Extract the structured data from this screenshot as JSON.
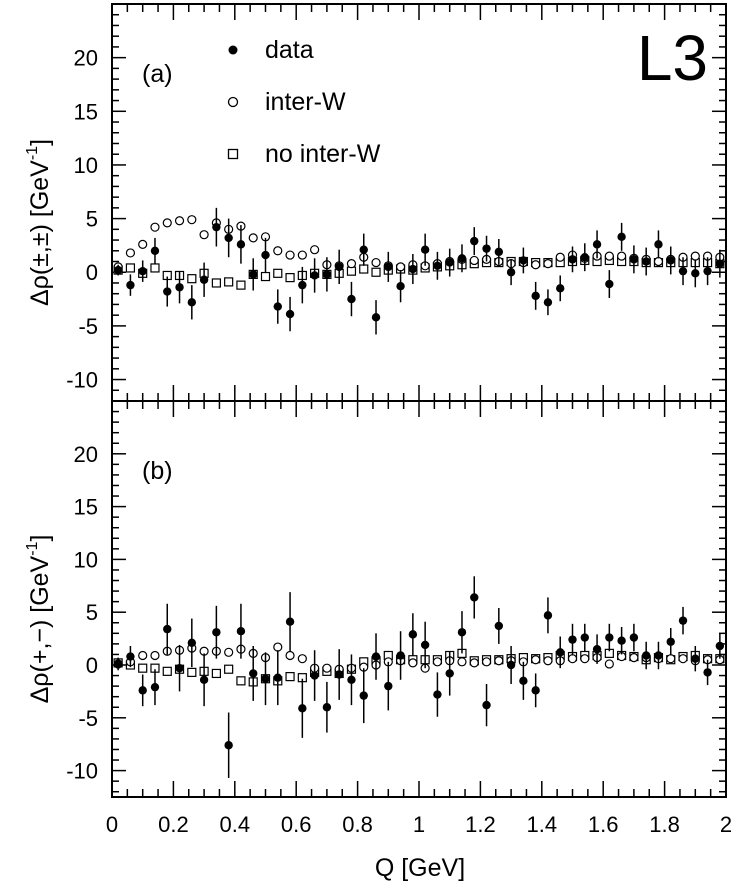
{
  "chart_data": {
    "type": "scatter",
    "logo": "L3",
    "xlabel": "Q [GeV]",
    "xlim": [
      0,
      2
    ],
    "x_ticks": [
      0,
      0.2,
      0.4,
      0.6,
      0.8,
      1,
      1.2,
      1.4,
      1.6,
      1.8,
      2
    ],
    "x_tick_labels": [
      "0",
      "0.2",
      "0.4",
      "0.6",
      "0.8",
      "1",
      "1.2",
      "1.4",
      "1.6",
      "1.8",
      "2"
    ],
    "legend": {
      "placement": "top-left",
      "entries": [
        {
          "label": "data",
          "marker": "filled-circle"
        },
        {
          "label": "inter-W",
          "marker": "open-circle"
        },
        {
          "label": "no inter-W",
          "marker": "open-square"
        }
      ]
    },
    "panels": [
      {
        "id": "a",
        "tag": "(a)",
        "ylabel": "Δρ(±,±) [GeV⁻¹]",
        "ylabel_main": "Δρ(±,±) [GeV",
        "ylabel_sup": "-1",
        "ylabel_close": "]",
        "ylim": [
          -12,
          25
        ],
        "y_ticks": [
          -10,
          -5,
          0,
          5,
          10,
          15,
          20
        ],
        "y_tick_labels": [
          "-10",
          "-5",
          "0",
          "5",
          "10",
          "15",
          "20"
        ],
        "series": [
          {
            "name": "data",
            "marker": "filled-circle",
            "x": [
              0.02,
              0.06,
              0.1,
              0.14,
              0.18,
              0.22,
              0.26,
              0.3,
              0.34,
              0.38,
              0.42,
              0.46,
              0.5,
              0.54,
              0.58,
              0.62,
              0.66,
              0.7,
              0.74,
              0.78,
              0.82,
              0.86,
              0.9,
              0.94,
              0.98,
              1.02,
              1.06,
              1.1,
              1.14,
              1.18,
              1.22,
              1.26,
              1.3,
              1.34,
              1.38,
              1.42,
              1.46,
              1.5,
              1.54,
              1.58,
              1.62,
              1.66,
              1.7,
              1.74,
              1.78,
              1.82,
              1.86,
              1.9,
              1.94,
              1.98
            ],
            "y": [
              0.2,
              -1.2,
              0.1,
              2.0,
              -1.8,
              -1.4,
              -2.8,
              -0.7,
              4.2,
              3.2,
              2.6,
              -0.2,
              1.6,
              -3.2,
              -3.9,
              -1.2,
              -0.3,
              -0.2,
              0.5,
              -2.5,
              2.1,
              -4.2,
              0.5,
              -1.3,
              0.3,
              2.1,
              0.6,
              0.9,
              1.3,
              2.9,
              2.2,
              1.9,
              0.0,
              1.1,
              -2.2,
              -2.8,
              -1.5,
              1.2,
              1.4,
              2.6,
              -1.1,
              3.3,
              1.2,
              1.0,
              2.6,
              1.1,
              0.1,
              -0.1,
              0.1,
              0.8
            ],
            "yerr": [
              0.5,
              1.0,
              1.0,
              1.2,
              1.4,
              1.5,
              1.6,
              1.6,
              1.8,
              1.8,
              1.8,
              1.5,
              1.6,
              1.6,
              1.6,
              1.7,
              1.6,
              1.6,
              1.6,
              1.6,
              1.5,
              1.6,
              1.4,
              1.5,
              1.4,
              1.5,
              1.3,
              1.3,
              1.3,
              1.3,
              1.2,
              1.2,
              1.2,
              1.2,
              1.3,
              1.2,
              1.2,
              1.2,
              1.3,
              1.3,
              1.3,
              1.3,
              1.3,
              1.3,
              1.3,
              1.3,
              1.3,
              1.3,
              1.3,
              1.3
            ]
          },
          {
            "name": "inter-W",
            "marker": "open-circle",
            "x": [
              0.02,
              0.06,
              0.1,
              0.14,
              0.18,
              0.22,
              0.26,
              0.3,
              0.34,
              0.38,
              0.42,
              0.46,
              0.5,
              0.54,
              0.58,
              0.62,
              0.66,
              0.7,
              0.74,
              0.78,
              0.82,
              0.86,
              0.9,
              0.94,
              0.98,
              1.02,
              1.06,
              1.1,
              1.14,
              1.18,
              1.22,
              1.26,
              1.3,
              1.34,
              1.38,
              1.42,
              1.46,
              1.5,
              1.54,
              1.58,
              1.62,
              1.66,
              1.7,
              1.74,
              1.78,
              1.82,
              1.86,
              1.9,
              1.94,
              1.98
            ],
            "y": [
              0.5,
              1.8,
              2.6,
              4.2,
              4.6,
              4.8,
              4.9,
              3.5,
              4.6,
              4.0,
              4.3,
              3.2,
              3.3,
              2.0,
              1.6,
              1.6,
              2.1,
              0.7,
              0.6,
              0.8,
              1.4,
              0.9,
              0.6,
              0.5,
              0.7,
              0.6,
              0.8,
              1.0,
              1.2,
              1.1,
              1.2,
              1.0,
              0.8,
              0.9,
              0.7,
              0.8,
              1.4,
              1.6,
              1.3,
              1.5,
              1.5,
              1.5,
              1.3,
              1.2,
              1.0,
              1.2,
              1.4,
              1.5,
              1.5,
              1.4
            ]
          },
          {
            "name": "no inter-W",
            "marker": "open-square",
            "x": [
              0.02,
              0.06,
              0.1,
              0.14,
              0.18,
              0.22,
              0.26,
              0.3,
              0.34,
              0.38,
              0.42,
              0.46,
              0.5,
              0.54,
              0.58,
              0.62,
              0.66,
              0.7,
              0.74,
              0.78,
              0.82,
              0.86,
              0.9,
              0.94,
              0.98,
              1.02,
              1.06,
              1.1,
              1.14,
              1.18,
              1.22,
              1.26,
              1.3,
              1.34,
              1.38,
              1.42,
              1.46,
              1.5,
              1.54,
              1.58,
              1.62,
              1.66,
              1.7,
              1.74,
              1.78,
              1.82,
              1.86,
              1.9,
              1.94,
              1.98
            ],
            "y": [
              0.2,
              0.4,
              -0.1,
              0.4,
              -0.3,
              -0.3,
              -0.6,
              -0.1,
              -1.0,
              -0.9,
              -1.2,
              -0.2,
              -0.4,
              -0.1,
              -0.5,
              -0.3,
              -0.1,
              -0.2,
              -0.1,
              0.1,
              0.3,
              0.0,
              0.2,
              0.3,
              0.2,
              0.4,
              0.5,
              0.6,
              0.7,
              0.8,
              0.9,
              0.9,
              1.0,
              1.0,
              0.9,
              0.9,
              0.9,
              1.0,
              1.1,
              1.0,
              1.1,
              1.0,
              1.0,
              0.9,
              0.9,
              0.9,
              0.9,
              0.9,
              0.9,
              0.8
            ]
          }
        ]
      },
      {
        "id": "b",
        "tag": "(b)",
        "ylabel": "Δρ(+,−) [GeV⁻¹]",
        "ylabel_main": "Δρ(+,−) [GeV",
        "ylabel_sup": "-1",
        "ylabel_close": "]",
        "ylim": [
          -12.5,
          25
        ],
        "y_ticks": [
          -10,
          -5,
          0,
          5,
          10,
          15,
          20
        ],
        "y_tick_labels": [
          "-10",
          "-5",
          "0",
          "5",
          "10",
          "15",
          "20"
        ],
        "series": [
          {
            "name": "data",
            "marker": "filled-circle",
            "x": [
              0.02,
              0.06,
              0.1,
              0.14,
              0.18,
              0.22,
              0.26,
              0.3,
              0.34,
              0.38,
              0.42,
              0.46,
              0.5,
              0.54,
              0.58,
              0.62,
              0.66,
              0.7,
              0.74,
              0.78,
              0.82,
              0.86,
              0.9,
              0.94,
              0.98,
              1.02,
              1.06,
              1.1,
              1.14,
              1.18,
              1.22,
              1.26,
              1.3,
              1.34,
              1.38,
              1.42,
              1.46,
              1.5,
              1.54,
              1.58,
              1.62,
              1.66,
              1.7,
              1.74,
              1.78,
              1.82,
              1.86,
              1.9,
              1.94,
              1.98
            ],
            "y": [
              0.1,
              0.8,
              -2.4,
              -2.1,
              3.4,
              -0.3,
              2.1,
              -1.4,
              3.1,
              -7.6,
              3.2,
              -0.8,
              -1.3,
              -1.2,
              4.1,
              -4.1,
              -1.0,
              -4.0,
              -0.9,
              -1.4,
              -2.9,
              0.8,
              -2.0,
              0.9,
              2.9,
              1.9,
              -2.8,
              -0.8,
              3.1,
              6.4,
              -3.8,
              3.7,
              0.0,
              -1.5,
              -2.4,
              4.7,
              1.2,
              2.4,
              2.6,
              1.5,
              2.6,
              2.3,
              2.6,
              0.9,
              0.9,
              2.2,
              4.2,
              0.6,
              -0.7,
              1.8
            ],
            "yerr": [
              0.6,
              1.0,
              1.5,
              1.7,
              2.4,
              2.2,
              2.3,
              2.5,
              2.5,
              3.1,
              2.6,
              2.6,
              2.5,
              2.6,
              2.8,
              2.8,
              2.4,
              2.4,
              2.4,
              2.4,
              2.6,
              2.2,
              2.3,
              2.3,
              2.0,
              2.2,
              2.1,
              2.1,
              2.0,
              2.0,
              2.0,
              1.7,
              1.8,
              1.8,
              1.6,
              1.7,
              1.5,
              1.5,
              1.3,
              1.4,
              1.3,
              1.3,
              1.3,
              1.3,
              1.3,
              1.3,
              1.3,
              1.2,
              1.2,
              1.2
            ]
          },
          {
            "name": "inter-W",
            "marker": "open-circle",
            "x": [
              0.02,
              0.06,
              0.1,
              0.14,
              0.18,
              0.22,
              0.26,
              0.3,
              0.34,
              0.38,
              0.42,
              0.46,
              0.5,
              0.54,
              0.58,
              0.62,
              0.66,
              0.7,
              0.74,
              0.78,
              0.82,
              0.86,
              0.9,
              0.94,
              0.98,
              1.02,
              1.06,
              1.1,
              1.14,
              1.18,
              1.22,
              1.26,
              1.3,
              1.34,
              1.38,
              1.42,
              1.46,
              1.5,
              1.54,
              1.58,
              1.62,
              1.66,
              1.7,
              1.74,
              1.78,
              1.82,
              1.86,
              1.9,
              1.94,
              1.98
            ],
            "y": [
              0.1,
              0.3,
              0.9,
              0.9,
              1.3,
              1.4,
              1.6,
              1.3,
              1.3,
              1.2,
              1.5,
              1.1,
              0.7,
              1.7,
              0.9,
              0.6,
              -0.3,
              -0.3,
              -0.4,
              -0.3,
              -0.2,
              0.0,
              0.3,
              0.4,
              0.2,
              -0.3,
              0.3,
              0.4,
              0.3,
              0.2,
              0.3,
              0.4,
              0.4,
              0.3,
              0.5,
              0.4,
              0.4,
              0.6,
              0.6,
              0.7,
              0.1,
              0.8,
              0.7,
              0.7,
              0.6,
              0.6,
              0.6,
              0.4,
              0.5,
              0.5
            ]
          },
          {
            "name": "no inter-W",
            "marker": "open-square",
            "x": [
              0.02,
              0.06,
              0.1,
              0.14,
              0.18,
              0.22,
              0.26,
              0.3,
              0.34,
              0.38,
              0.42,
              0.46,
              0.5,
              0.54,
              0.58,
              0.62,
              0.66,
              0.7,
              0.74,
              0.78,
              0.82,
              0.86,
              0.9,
              0.94,
              0.98,
              1.02,
              1.06,
              1.1,
              1.14,
              1.18,
              1.22,
              1.26,
              1.3,
              1.34,
              1.38,
              1.42,
              1.46,
              1.5,
              1.54,
              1.58,
              1.62,
              1.66,
              1.7,
              1.74,
              1.78,
              1.82,
              1.86,
              1.9,
              1.94,
              1.98
            ],
            "y": [
              0.2,
              0.0,
              -0.3,
              -0.3,
              -0.6,
              -0.4,
              -0.7,
              -0.6,
              -0.8,
              -0.4,
              -1.5,
              -1.6,
              -1.3,
              -1.5,
              -1.1,
              -1.2,
              -0.7,
              -0.6,
              -0.8,
              -0.4,
              0.3,
              0.4,
              0.9,
              0.5,
              0.5,
              0.5,
              0.5,
              0.9,
              1.1,
              0.4,
              0.5,
              0.5,
              0.6,
              0.7,
              0.6,
              0.7,
              0.9,
              0.8,
              0.9,
              0.9,
              1.1,
              0.9,
              0.8,
              0.5,
              0.7,
              0.5,
              0.8,
              0.9,
              0.6,
              0.6
            ]
          }
        ]
      }
    ]
  }
}
